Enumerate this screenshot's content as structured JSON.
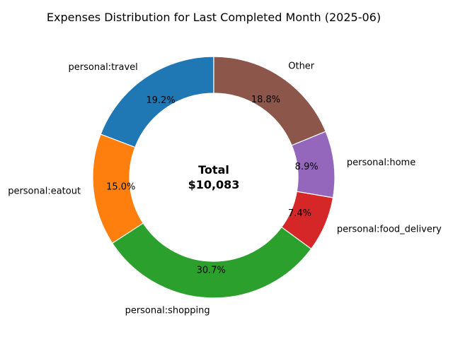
{
  "chart_data": {
    "type": "pie",
    "style": "donut",
    "title": "Expenses Distribution for Last Completed Month (2025-06)",
    "center_text": [
      "Total",
      "$10,083"
    ],
    "slices": [
      {
        "label": "personal:travel",
        "percent": 19.2,
        "pct_label": "19.2%",
        "color": "#1f77b4"
      },
      {
        "label": "personal:eatout",
        "percent": 15.0,
        "pct_label": "15.0%",
        "color": "#ff7f0e"
      },
      {
        "label": "personal:shopping",
        "percent": 30.7,
        "pct_label": "30.7%",
        "color": "#2ca02c"
      },
      {
        "label": "personal:food_delivery",
        "percent": 7.4,
        "pct_label": "7.4%",
        "color": "#d62728"
      },
      {
        "label": "personal:home",
        "percent": 8.9,
        "pct_label": "8.9%",
        "color": "#9467bd"
      },
      {
        "label": "Other",
        "percent": 18.8,
        "pct_label": "18.8%",
        "color": "#8c564b"
      }
    ],
    "direction": "counterclockwise",
    "start": "top"
  }
}
